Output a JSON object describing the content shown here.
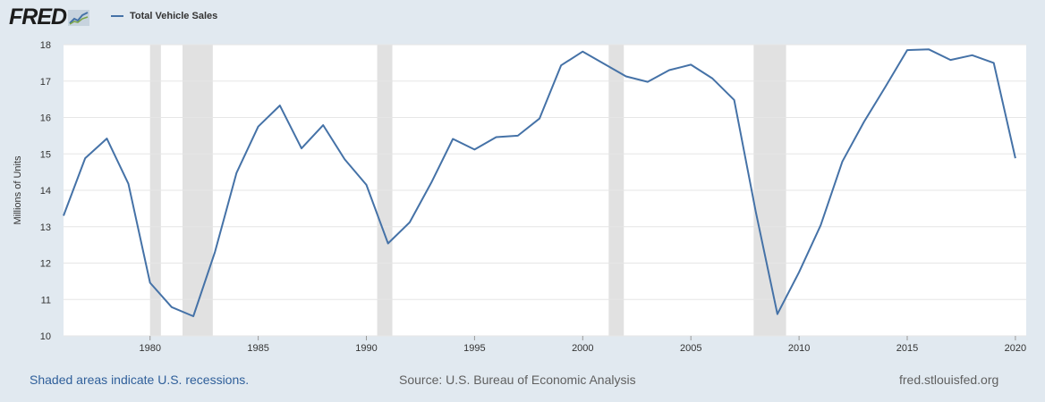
{
  "header": {
    "logo_text": "FRED",
    "legend_label": "Total Vehicle Sales"
  },
  "footer": {
    "recession_note": "Shaded areas indicate U.S. recessions.",
    "source": "Source: U.S. Bureau of Economic Analysis",
    "site": "fred.stlouisfed.org"
  },
  "colors": {
    "series": "#4572a7",
    "recession": "#e1e1e1",
    "background": "#e1e9f0",
    "plot": "#ffffff",
    "footer_link": "#2f5f9a"
  },
  "chart_data": {
    "type": "line",
    "title": "",
    "xlabel": "",
    "ylabel": "Millions of Units",
    "xlim": [
      1976,
      2020.5
    ],
    "ylim": [
      10,
      18
    ],
    "grid": true,
    "legend": "top-left",
    "x_ticks": [
      "1980",
      "1985",
      "1990",
      "1995",
      "2000",
      "2005",
      "2010",
      "2015",
      "2020"
    ],
    "y_ticks": [
      "10",
      "11",
      "12",
      "13",
      "14",
      "15",
      "16",
      "17",
      "18"
    ],
    "recessions": [
      [
        1980.0,
        1980.5
      ],
      [
        1981.5,
        1982.9
      ],
      [
        1990.5,
        1991.2
      ],
      [
        2001.2,
        2001.9
      ],
      [
        2007.9,
        2009.4
      ]
    ],
    "series": [
      {
        "name": "Total Vehicle Sales",
        "x": [
          1976,
          1977,
          1978,
          1979,
          1980,
          1981,
          1982,
          1983,
          1984,
          1985,
          1986,
          1987,
          1988,
          1989,
          1990,
          1991,
          1992,
          1993,
          1994,
          1995,
          1996,
          1997,
          1998,
          1999,
          2000,
          2001,
          2002,
          2003,
          2004,
          2005,
          2006,
          2007,
          2008,
          2009,
          2010,
          2011,
          2012,
          2013,
          2014,
          2015,
          2016,
          2017,
          2018,
          2019,
          2020
        ],
        "values": [
          13.3,
          14.88,
          15.42,
          14.18,
          11.46,
          10.79,
          10.54,
          12.31,
          14.48,
          15.75,
          16.33,
          15.15,
          15.79,
          14.85,
          14.15,
          12.54,
          13.12,
          14.21,
          15.41,
          15.12,
          15.46,
          15.5,
          15.97,
          17.43,
          17.81,
          17.47,
          17.13,
          16.98,
          17.3,
          17.45,
          17.07,
          16.48,
          13.4,
          10.6,
          11.75,
          13.04,
          14.79,
          15.88,
          16.85,
          17.85,
          17.87,
          17.58,
          17.71,
          17.5,
          14.88
        ]
      }
    ]
  }
}
